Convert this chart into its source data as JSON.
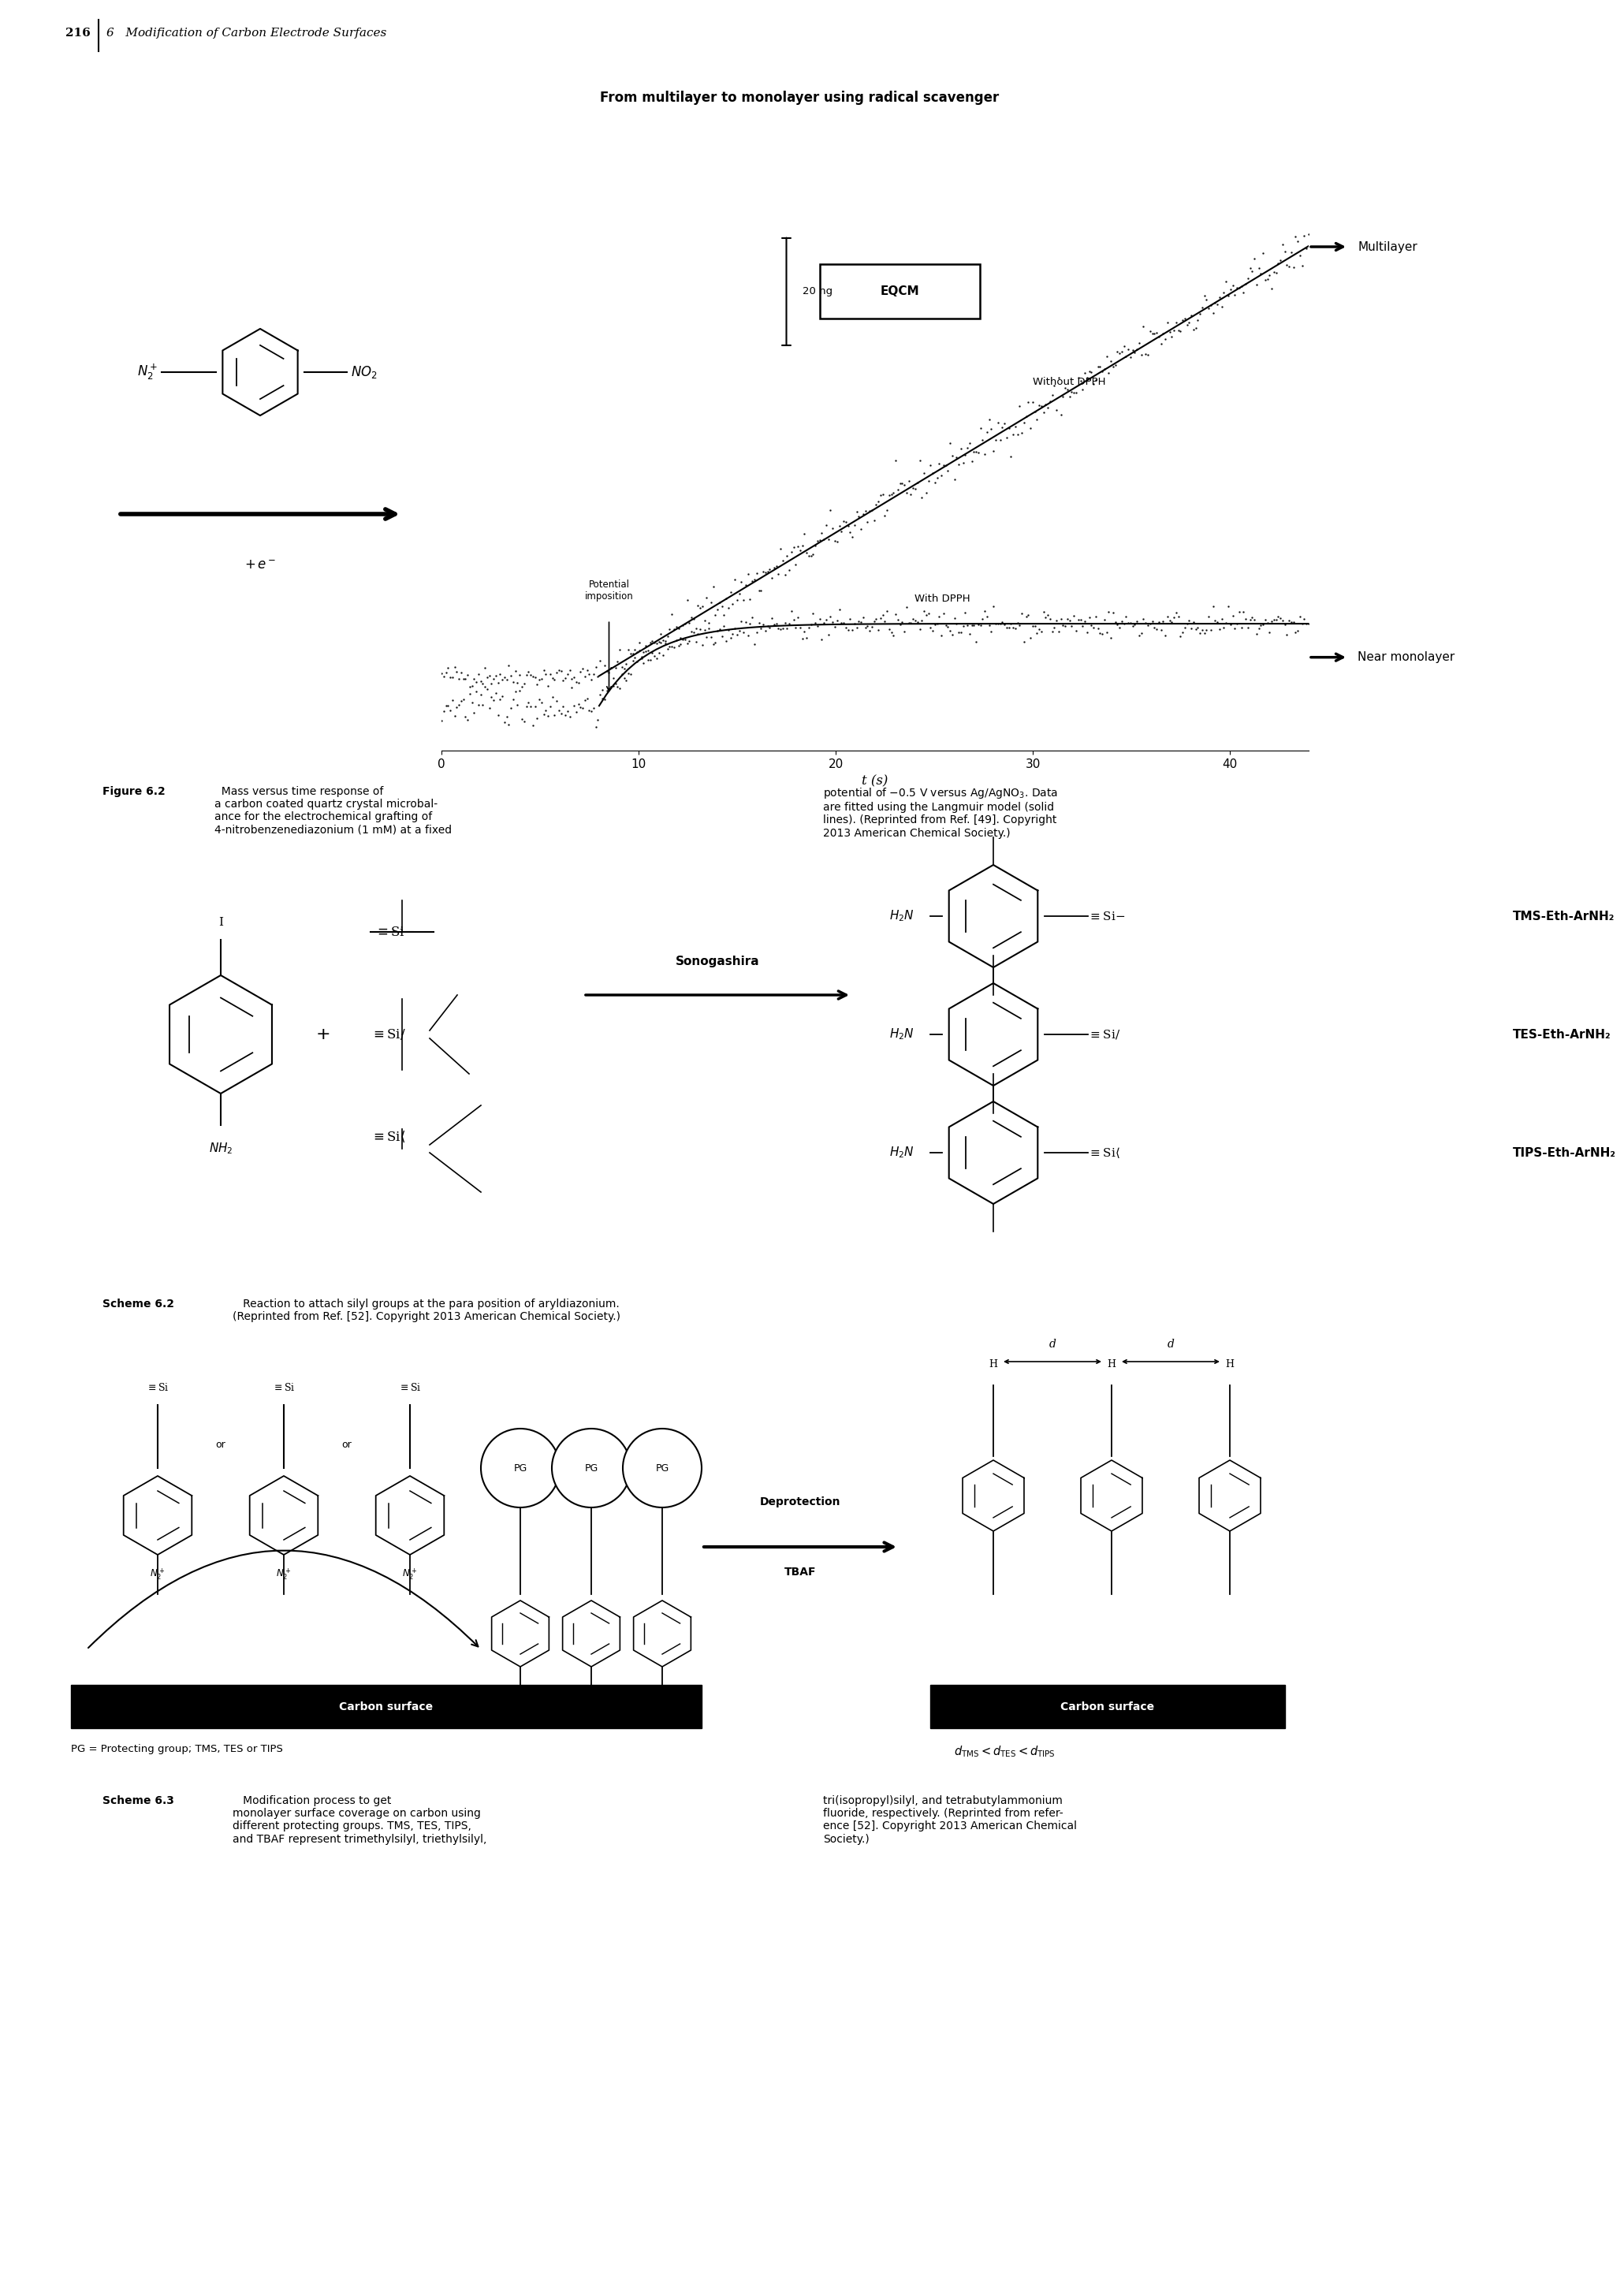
{
  "page_width": 20.09,
  "page_height": 28.82,
  "bg_color": "#ffffff",
  "header_text": "216",
  "header_chapter": "6   Modification of Carbon Electrode Surfaces",
  "figure_title": "From multilayer to monolayer using radical scavenger",
  "eqcm_label": "EQCM",
  "multilayer_label": "Multilayer",
  "near_monolayer_label": "Near monolayer",
  "without_dpph_label": "Without DPPH",
  "with_dpph_label": "With DPPH",
  "potential_imposition_label": "Potential\nimposition",
  "scale_bar_label": "20 ng",
  "xlabel": "t (s)",
  "xticks": [
    0,
    10,
    20,
    30,
    40
  ],
  "carbon_label": "Carbon",
  "plus_e_label": "+ e⁻",
  "fig_caption_bold": "Figure 6.2",
  "fig_caption_left": "  Mass versus time response of a carbon coated quartz crystal microbal-ance for the electrochemical grafting of 4-nitrobenzenediazonium (1 mM) at a fixed",
  "fig_caption_right": "potential of −0.5 V versus Ag/AgNO₃. Data are fitted using the Langmuir model (solid lines). (Reprinted from Ref. [49]. Copyright 2013 American Chemical Society.)",
  "scheme2_caption_bold": "Scheme 6.2",
  "scheme2_caption": "   Reaction to attach silyl groups at the para position of aryldiazonium.\n(Reprinted from Ref. [52]. Copyright 2013 American Chemical Society.)",
  "sonogashira_label": "Sonogashira",
  "tms_label": "TMS-Eth-ArNH₂",
  "tes_label": "TES-Eth-ArNH₂",
  "tips_label": "TIPS-Eth-ArNH₂",
  "scheme3_caption_bold": "Scheme 6.3",
  "scheme3_caption_left": "   Modification process to get monolayer surface coverage on carbon using different protecting groups. TMS, TES, TIPS, and TBAF represent trimethylsilyl, triethylsilyl,",
  "scheme3_caption_right": "tri(isopropyl)silyl, and tetrabutylammonium fluoride, respectively. (Reprinted from reference [52]. Copyright 2013 American Chemical Society.)",
  "pg_label": "PG",
  "carbon_surface_label": "Carbon surface",
  "protecting_group_label": "PG = Protecting group; TMS, TES or TIPS",
  "deprotection_label": "Deprotection",
  "tbaf_label": "TBAF",
  "d_label": "d"
}
